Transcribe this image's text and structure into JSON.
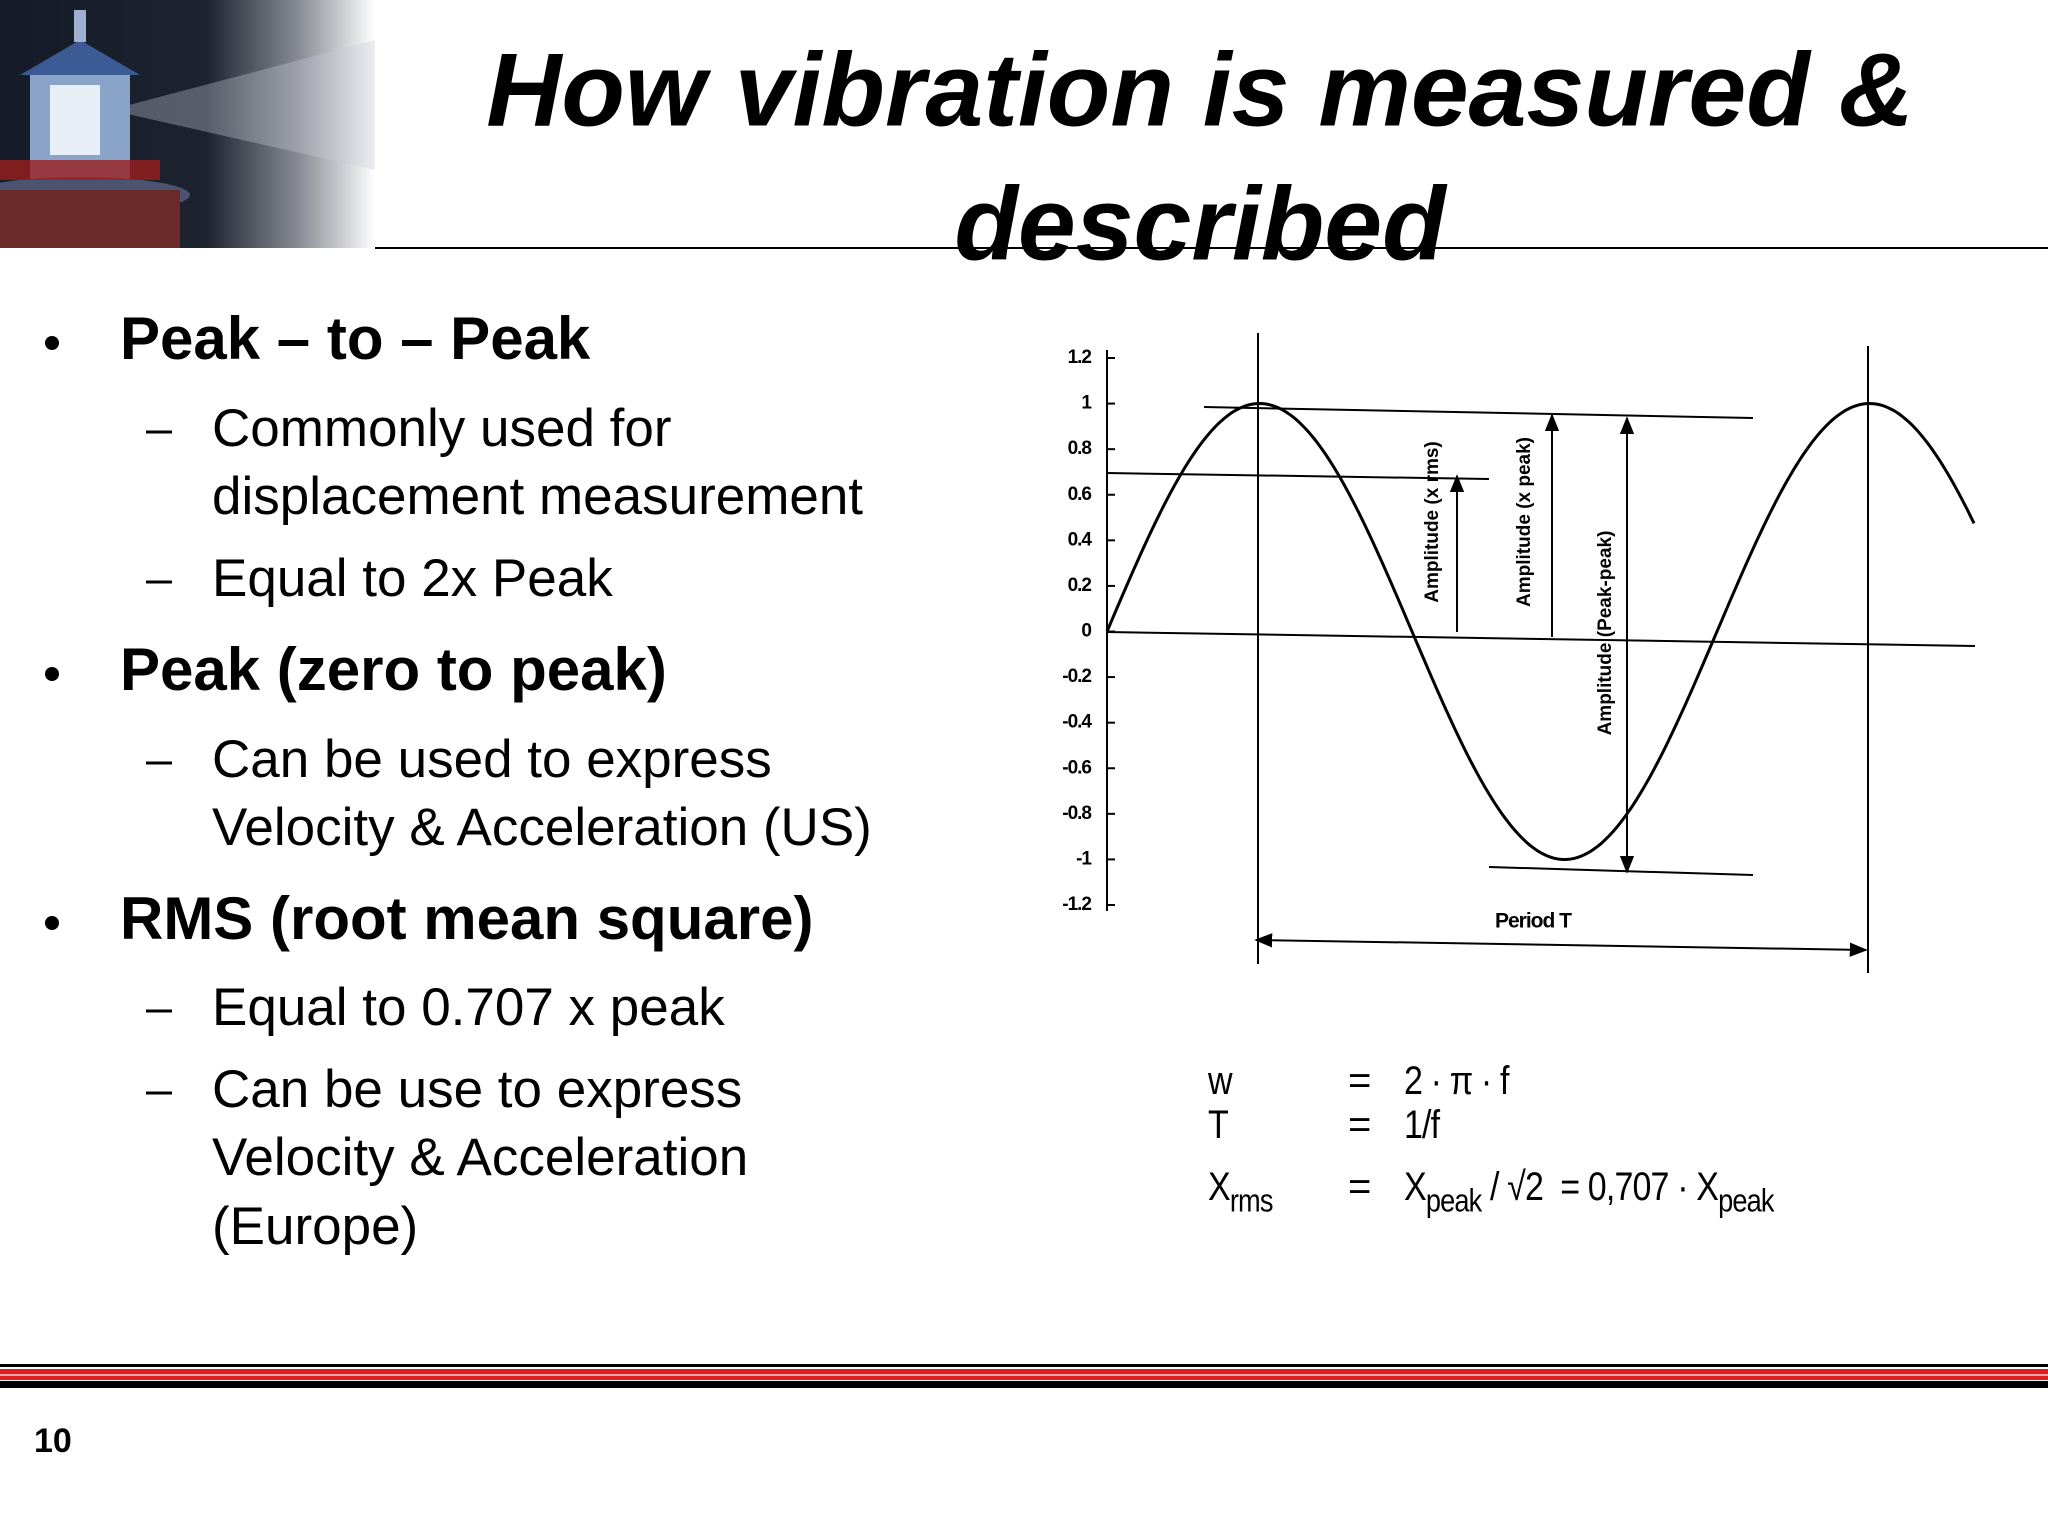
{
  "header": {
    "title_lines": [
      "How vibration is measured &",
      "described"
    ]
  },
  "bullets": [
    {
      "text": "Peak – to – Peak",
      "sub": [
        [
          "Commonly used for",
          "displacement measurement"
        ],
        [
          "Equal to 2x Peak"
        ]
      ]
    },
    {
      "text": "Peak (zero to peak)",
      "sub": [
        [
          "Can be used to express",
          "Velocity & Acceleration (US)"
        ]
      ]
    },
    {
      "text": "RMS (root mean square)",
      "sub": [
        [
          "Equal to 0.707 x peak"
        ],
        [
          "Can be use to express",
          "Velocity & Acceleration",
          "(Europe)"
        ]
      ]
    }
  ],
  "figure": {
    "ylim": [
      -1.2,
      1.2
    ],
    "yticks": [
      1.2,
      1,
      0.8,
      0.6,
      0.4,
      0.2,
      0,
      -0.2,
      -0.4,
      -0.6,
      -0.8,
      -1,
      -1.2
    ],
    "labels": {
      "rms": "Amplitude (x rms)",
      "peak": "Amplitude (x peak)",
      "peak_peak": "Amplitude (Peak-peak)",
      "period": "Period T"
    }
  },
  "formulas": [
    {
      "lhs": [
        {
          "t": "w"
        }
      ],
      "eq": "=",
      "rhs": [
        {
          "t": "2 · π · f"
        }
      ]
    },
    {
      "lhs": [
        {
          "t": "T"
        }
      ],
      "eq": "=",
      "rhs": [
        {
          "t": "1/f"
        }
      ]
    },
    {
      "lhs": [
        {
          "t": "X"
        },
        {
          "sub": "rms"
        }
      ],
      "eq": "=",
      "rhs": [
        {
          "t": "X"
        },
        {
          "sub": "peak"
        },
        {
          "t": " / √2  = 0,707 · X"
        },
        {
          "sub": "peak"
        }
      ]
    }
  ],
  "page_number": "10"
}
